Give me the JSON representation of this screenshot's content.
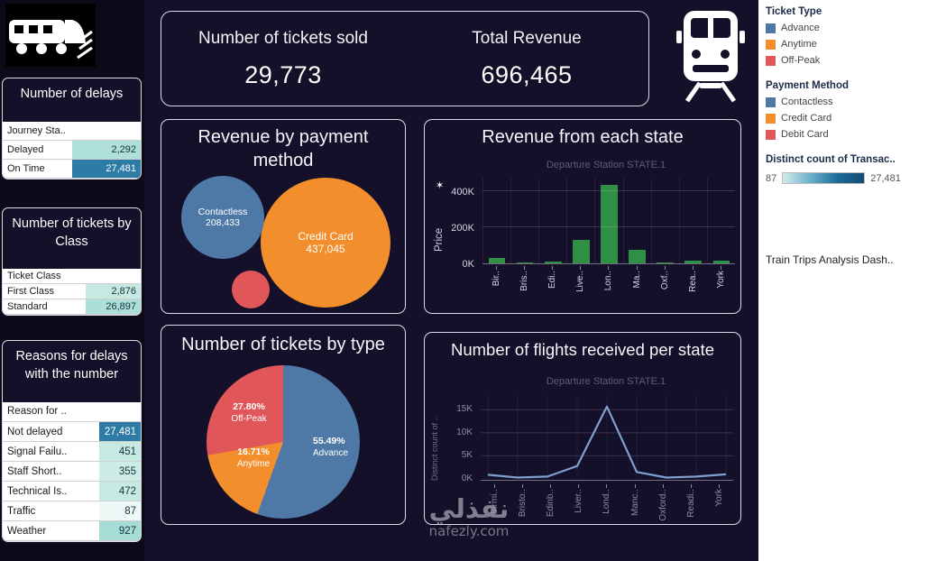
{
  "colors": {
    "background": "#151029",
    "card_border": "#dcdce8",
    "blue": "#4e79a7",
    "orange": "#f28e2b",
    "red": "#e15759",
    "bar_green": "#2f8f44",
    "line_blue": "#7da0d0",
    "dark_cell": "#2e7ba6"
  },
  "kpi": {
    "tickets_label": "Number of tickets sold",
    "tickets_value": "29,773",
    "revenue_label": "Total Revenue",
    "revenue_value": "696,465"
  },
  "left": {
    "delays": {
      "title": "Number of delays",
      "header": "Journey Sta..",
      "rows": [
        {
          "label": "Delayed",
          "value": "2,292",
          "bg": "#aee0d9",
          "fg": "#16323c"
        },
        {
          "label": "On Time",
          "value": "27,481",
          "bg": "#2e7ba6",
          "fg": "#ffffff"
        }
      ]
    },
    "by_class": {
      "title": "Number of tickets by Class",
      "header": "Ticket Class",
      "rows": [
        {
          "label": "First Class",
          "value": "2,876",
          "bg": "#c6e9e2",
          "fg": "#16323c"
        },
        {
          "label": "Standard",
          "value": "26,897",
          "bg": "#abdfd7",
          "fg": "#16323c"
        }
      ]
    },
    "reasons": {
      "title": "Reasons for delays with the number",
      "header": "Reason for ..",
      "rows": [
        {
          "label": "Not delayed",
          "value": "27,481",
          "bg": "#2e7ba6",
          "fg": "#ffffff"
        },
        {
          "label": "Signal Failu..",
          "value": "451",
          "bg": "#c6e9e2",
          "fg": "#16323c"
        },
        {
          "label": "Staff Short..",
          "value": "355",
          "bg": "#cdece6",
          "fg": "#16323c"
        },
        {
          "label": "Technical Is..",
          "value": "472",
          "bg": "#c6e9e2",
          "fg": "#16323c"
        },
        {
          "label": "Traffic",
          "value": "87",
          "bg": "#eef8f6",
          "fg": "#16323c"
        },
        {
          "label": "Weather",
          "value": "927",
          "bg": "#a5ddd5",
          "fg": "#16323c"
        }
      ]
    }
  },
  "chart_data": [
    {
      "type": "bubble",
      "title": "Revenue by payment method",
      "items": [
        {
          "label": "Credit Card",
          "value": "437,045",
          "color": "#f28e2b"
        },
        {
          "label": "Contactless",
          "value": "208,433",
          "color": "#4e79a7"
        },
        {
          "label": "Debit Card",
          "value": "",
          "color": "#e15759"
        }
      ]
    },
    {
      "type": "bar",
      "title": "Revenue from each state",
      "subtitle": "Departure Station STATE.1",
      "ylabel": "Price",
      "categories": [
        "Bir..",
        "Bris..",
        "Edi..",
        "Live..",
        "Lon..",
        "Ma..",
        "Oxf..",
        "Rea..",
        "York"
      ],
      "values": [
        30000,
        6000,
        9000,
        130000,
        437000,
        75000,
        5000,
        14000,
        17000
      ],
      "ylim": [
        0,
        480000
      ],
      "yticks": [
        {
          "label": "0K",
          "value": 0
        },
        {
          "label": "200K",
          "value": 200000
        },
        {
          "label": "400K",
          "value": 400000
        }
      ],
      "color": "#2f8f44"
    },
    {
      "type": "pie",
      "title": "Number of tickets by type",
      "slices": [
        {
          "label": "Advance",
          "pct": 55.49,
          "pct_label": "55.49%",
          "color": "#4e79a7"
        },
        {
          "label": "Anytime",
          "pct": 16.71,
          "pct_label": "16.71%",
          "color": "#f28e2b"
        },
        {
          "label": "Off-Peak",
          "pct": 27.8,
          "pct_label": "27.80%",
          "color": "#e15759"
        }
      ]
    },
    {
      "type": "line",
      "title": "Number of flights received per state",
      "subtitle": "Departure Station STATE.1",
      "ylabel": "Distinct count of ..",
      "categories": [
        "Birmi..",
        "Bristo..",
        "Edinb..",
        "Liver..",
        "Lond..",
        "Manc..",
        "Oxford..",
        "Readi..",
        "York"
      ],
      "values": [
        900,
        300,
        500,
        2800,
        15700,
        1500,
        300,
        500,
        1000
      ],
      "ylim": [
        0,
        18000
      ],
      "yticks": [
        {
          "label": "0K",
          "value": 0
        },
        {
          "label": "5K",
          "value": 5000
        },
        {
          "label": "10K",
          "value": 10000
        },
        {
          "label": "15K",
          "value": 15000
        }
      ],
      "color": "#7da0d0"
    }
  ],
  "sidebar": {
    "ticket_type": {
      "title": "Ticket Type",
      "items": [
        {
          "label": "Advance",
          "color": "#4e79a7"
        },
        {
          "label": "Anytime",
          "color": "#f28e2b"
        },
        {
          "label": "Off-Peak",
          "color": "#e15759"
        }
      ]
    },
    "payment_method": {
      "title": "Payment Method",
      "items": [
        {
          "label": "Contactless",
          "color": "#4e79a7"
        },
        {
          "label": "Credit Card",
          "color": "#f28e2b"
        },
        {
          "label": "Debit Card",
          "color": "#e15759"
        }
      ]
    },
    "distinct_count": {
      "title": "Distinct count of Transac..",
      "min": "87",
      "max": "27,481",
      "gradient": [
        "#d3ece9",
        "#6db2cb",
        "#1d6d99",
        "#124a73"
      ]
    },
    "tab_name": "Train Trips Analysis Dash.."
  },
  "icons": {
    "axis_star": "✶"
  },
  "watermark": {
    "arabic": "نفذلي",
    "site": "nafezly.com"
  }
}
